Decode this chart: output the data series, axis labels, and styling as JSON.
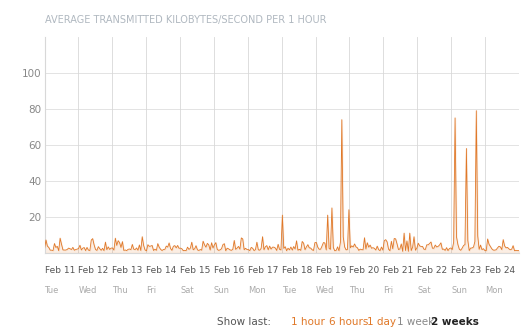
{
  "title": "AVERAGE TRANSMITTED KILOBYTES/SECOND PER 1 HOUR",
  "title_color": "#b0b8c0",
  "title_fontsize": 7.0,
  "line_color": "#e07828",
  "background_color": "#ffffff",
  "plot_bg_color": "#ffffff",
  "border_color": "#cccccc",
  "ylim": [
    0,
    120
  ],
  "yticks": [
    20,
    40,
    60,
    80,
    100
  ],
  "ylabel_color": "#888888",
  "ylabel_fontsize": 7.5,
  "x_date_labels": [
    "Feb 11",
    "Feb 12",
    "Feb 13",
    "Feb 14",
    "Feb 15",
    "Feb 16",
    "Feb 17",
    "Feb 18",
    "Feb 19",
    "Feb 20",
    "Feb 21",
    "Feb 22",
    "Feb 23",
    "Feb 24"
  ],
  "x_day_labels": [
    "Tue",
    "Wed",
    "Thu",
    "Fri",
    "Sat",
    "Sun",
    "Mon",
    "Tue",
    "Wed",
    "Thu",
    "Fri",
    "Sat",
    "Sun",
    "Mon"
  ],
  "show_last_label": "Show last:",
  "show_last_options": [
    "1 hour",
    "6 hours",
    "1 day",
    "1 week",
    "2 weeks"
  ],
  "show_last_colors": [
    "#e07828",
    "#e07828",
    "#e07828",
    "#888888",
    "#222222"
  ],
  "show_last_bold": [
    false,
    false,
    false,
    false,
    true
  ],
  "show_last_fontsize": 7.5,
  "num_points": 336,
  "grid_color": "#d8d8d8",
  "spike_positions": [
    168,
    200,
    203,
    210,
    215,
    254,
    258,
    290,
    298,
    305
  ],
  "spike_values": [
    21,
    21,
    25,
    74,
    24,
    11,
    11,
    75,
    58,
    79
  ]
}
